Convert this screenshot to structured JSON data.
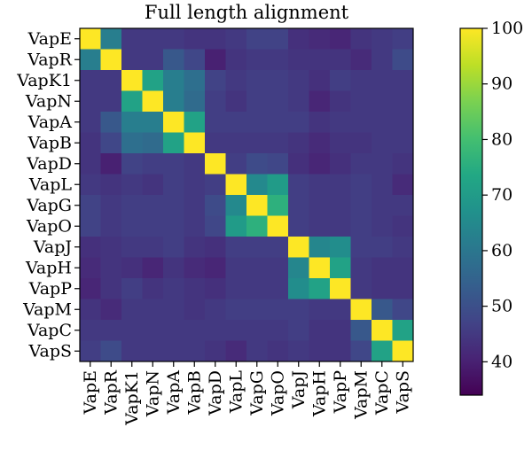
{
  "chart_data": {
    "type": "heatmap",
    "title": "Full length alignment",
    "xlabel": "",
    "ylabel": "",
    "categories": [
      "VapE",
      "VapR",
      "VapK1",
      "VapN",
      "VapA",
      "VapB",
      "VapD",
      "VapL",
      "VapG",
      "VapO",
      "VapJ",
      "VapH",
      "VapP",
      "VapM",
      "VapC",
      "VapS"
    ],
    "x": [
      "VapE",
      "VapR",
      "VapK1",
      "VapN",
      "VapA",
      "VapB",
      "VapD",
      "VapL",
      "VapG",
      "VapO",
      "VapJ",
      "VapH",
      "VapP",
      "VapM",
      "VapC",
      "VapS"
    ],
    "y": [
      "VapE",
      "VapR",
      "VapK1",
      "VapN",
      "VapA",
      "VapB",
      "VapD",
      "VapL",
      "VapG",
      "VapO",
      "VapJ",
      "VapH",
      "VapP",
      "VapM",
      "VapC",
      "VapS"
    ],
    "values": [
      [
        100,
        62,
        45,
        45,
        45,
        44,
        44,
        45,
        47,
        47,
        43,
        42,
        41,
        44,
        45,
        46
      ],
      [
        62,
        100,
        45,
        45,
        52,
        48,
        40,
        44,
        45,
        45,
        44,
        44,
        44,
        42,
        45,
        49
      ],
      [
        45,
        45,
        100,
        72,
        62,
        58,
        47,
        45,
        46,
        46,
        45,
        43,
        46,
        45,
        45,
        45
      ],
      [
        45,
        45,
        72,
        100,
        62,
        57,
        46,
        44,
        46,
        46,
        45,
        41,
        44,
        45,
        45,
        45
      ],
      [
        45,
        52,
        62,
        62,
        100,
        72,
        46,
        46,
        46,
        46,
        46,
        44,
        45,
        45,
        45,
        45
      ],
      [
        44,
        48,
        58,
        57,
        72,
        100,
        45,
        45,
        45,
        45,
        44,
        42,
        44,
        44,
        45,
        45
      ],
      [
        44,
        40,
        47,
        46,
        46,
        45,
        100,
        46,
        49,
        48,
        43,
        41,
        43,
        45,
        45,
        44
      ],
      [
        45,
        44,
        45,
        44,
        46,
        45,
        46,
        100,
        65,
        70,
        46,
        45,
        45,
        46,
        45,
        42
      ],
      [
        47,
        45,
        46,
        46,
        46,
        45,
        49,
        65,
        100,
        76,
        46,
        45,
        45,
        46,
        45,
        45
      ],
      [
        47,
        45,
        46,
        46,
        46,
        45,
        48,
        70,
        76,
        100,
        46,
        45,
        45,
        46,
        45,
        44
      ],
      [
        43,
        44,
        45,
        45,
        46,
        44,
        43,
        46,
        46,
        46,
        100,
        64,
        66,
        46,
        46,
        45
      ],
      [
        42,
        44,
        43,
        41,
        44,
        42,
        41,
        45,
        45,
        45,
        64,
        100,
        72,
        45,
        44,
        44
      ],
      [
        41,
        44,
        46,
        44,
        45,
        44,
        43,
        45,
        45,
        45,
        66,
        72,
        100,
        45,
        44,
        44
      ],
      [
        44,
        42,
        45,
        45,
        45,
        44,
        45,
        46,
        46,
        46,
        46,
        45,
        45,
        100,
        52,
        48
      ],
      [
        45,
        45,
        45,
        45,
        45,
        45,
        45,
        45,
        45,
        45,
        46,
        44,
        44,
        52,
        100,
        72
      ],
      [
        46,
        49,
        45,
        45,
        45,
        45,
        44,
        42,
        45,
        44,
        45,
        44,
        44,
        48,
        72,
        100
      ]
    ],
    "colorbar": {
      "range": [
        34,
        100
      ],
      "ticks": [
        100,
        90,
        80,
        70,
        60,
        50,
        40
      ],
      "colormap": "viridis"
    },
    "grid": false,
    "legend": "colorbar-right"
  }
}
